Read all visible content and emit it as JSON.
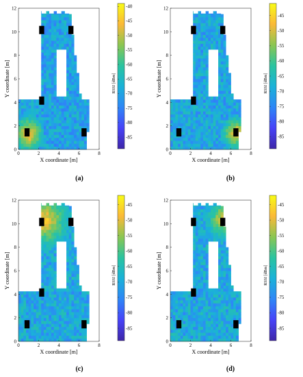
{
  "chart_data": [
    {
      "type": "heatmap",
      "panel_label": "(a)",
      "xlabel": "X coordinate [m]",
      "ylabel": "Y coordinate [m]",
      "colorbar_label": "RSSI [dBm]",
      "xlim": [
        0,
        8
      ],
      "ylim": [
        0,
        12
      ],
      "xticks": [
        "0",
        "2",
        "4",
        "6",
        "8"
      ],
      "yticks": [
        "0",
        "2",
        "4",
        "6",
        "8",
        "10",
        "12"
      ],
      "clim": [
        -89,
        -39
      ],
      "cticks": [
        "-40",
        "-45",
        "-50",
        "-55",
        "-60",
        "-65",
        "-70",
        "-75",
        "-80",
        "-85"
      ],
      "beacons": [
        [
          0.85,
          1.45
        ],
        [
          6.5,
          1.45
        ],
        [
          2.3,
          4.15
        ],
        [
          2.3,
          10.15
        ],
        [
          5.2,
          10.15
        ]
      ],
      "hotspots": [
        {
          "x": 1.0,
          "y": 1.3,
          "peak": -43,
          "radius": 1.6
        }
      ]
    },
    {
      "type": "heatmap",
      "panel_label": "(b)",
      "xlabel": "X coordinate [m]",
      "ylabel": "Y coordinate [m]",
      "colorbar_label": "RSSI [dBm]",
      "xlim": [
        0,
        8
      ],
      "ylim": [
        0,
        12
      ],
      "xticks": [
        "0",
        "2",
        "4",
        "6",
        "8"
      ],
      "yticks": [
        "0",
        "2",
        "4",
        "6",
        "8",
        "10",
        "12"
      ],
      "clim": [
        -89,
        -41
      ],
      "cticks": [
        "-45",
        "-50",
        "-55",
        "-60",
        "-65",
        "-70",
        "-75",
        "-80",
        "-85"
      ],
      "beacons": [
        [
          0.85,
          1.45
        ],
        [
          6.5,
          1.45
        ],
        [
          2.3,
          4.15
        ],
        [
          2.3,
          10.15
        ],
        [
          5.2,
          10.15
        ]
      ],
      "hotspots": [
        {
          "x": 6.5,
          "y": 1.4,
          "peak": -45,
          "radius": 1.5
        }
      ]
    },
    {
      "type": "heatmap",
      "panel_label": "(c)",
      "xlabel": "X coordinate [m]",
      "ylabel": "Y coordinate [m]",
      "colorbar_label": "RSSI [dBm]",
      "xlim": [
        0,
        8
      ],
      "ylim": [
        0,
        12
      ],
      "xticks": [
        "0",
        "2",
        "4",
        "6",
        "8"
      ],
      "yticks": [
        "0",
        "2",
        "4",
        "6",
        "8",
        "10",
        "12"
      ],
      "clim": [
        -89,
        -42
      ],
      "cticks": [
        "-45",
        "-50",
        "-55",
        "-60",
        "-65",
        "-70",
        "-75",
        "-80",
        "-85"
      ],
      "beacons": [
        [
          0.85,
          1.45
        ],
        [
          6.5,
          1.45
        ],
        [
          2.3,
          4.15
        ],
        [
          2.3,
          10.15
        ],
        [
          5.2,
          10.15
        ]
      ],
      "hotspots": [
        {
          "x": 2.6,
          "y": 10.3,
          "peak": -46,
          "radius": 2.6
        }
      ]
    },
    {
      "type": "heatmap",
      "panel_label": "(d)",
      "xlabel": "X coordinate [m]",
      "ylabel": "Y coordinate [m]",
      "colorbar_label": "RSSI [dBm]",
      "xlim": [
        0,
        8
      ],
      "ylim": [
        0,
        12
      ],
      "xticks": [
        "0",
        "2",
        "4",
        "6",
        "8"
      ],
      "yticks": [
        "0",
        "2",
        "4",
        "6",
        "8",
        "10",
        "12"
      ],
      "clim": [
        -89,
        -42
      ],
      "cticks": [
        "-45",
        "-50",
        "-55",
        "-60",
        "-65",
        "-70",
        "-75",
        "-80",
        "-85"
      ],
      "beacons": [
        [
          0.85,
          1.45
        ],
        [
          6.5,
          1.45
        ],
        [
          2.3,
          4.15
        ],
        [
          2.3,
          10.15
        ],
        [
          5.2,
          10.15
        ]
      ],
      "hotspots": [
        {
          "x": 5.2,
          "y": 10.4,
          "peak": -49,
          "radius": 2.0
        }
      ]
    }
  ],
  "colors": {
    "colormap": [
      "#3e26a8",
      "#4743f8",
      "#2e87f7",
      "#1ab2d8",
      "#2ac4a0",
      "#8bc652",
      "#fbb938",
      "#f9fb15"
    ],
    "beacon": "#000000",
    "mask": "#ffffff"
  }
}
